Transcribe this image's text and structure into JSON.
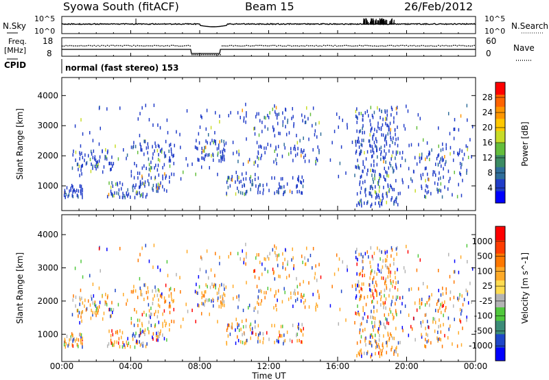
{
  "header": {
    "station": "Syowa South (fitACF)",
    "beam": "Beam 15",
    "date": "26/Feb/2012"
  },
  "noise_panel": {
    "left_label": "N.Sky",
    "right_label": "N.Search",
    "ytick_top": "10^5",
    "ytick_bottom": "10^0",
    "right_tick_top": "10^5",
    "right_tick_bottom": "10^0"
  },
  "freq_panel": {
    "left_label": "Freq.",
    "left_unit": "[MHz]",
    "left_ticks": [
      "18",
      "8"
    ],
    "right_label": "Nave",
    "right_ticks": [
      "60",
      "0"
    ],
    "cpid_label": "CPID",
    "mode_text": "normal (fast stereo) 153"
  },
  "chart_data": [
    {
      "type": "heatmap",
      "name": "power",
      "ylabel": "Slant Range [km]",
      "yticks": [
        1000,
        2000,
        3000,
        4000
      ],
      "ylim": [
        180,
        4600
      ],
      "xlim": [
        0,
        24
      ],
      "colorbar": {
        "label": "Power [dB]",
        "ticks": [
          "28",
          "24",
          "20",
          "16",
          "12",
          "8",
          "4"
        ],
        "colors": [
          "#0000ff",
          "#203cc8",
          "#2f6e9a",
          "#3c8c64",
          "#64be3c",
          "#c8dc28",
          "#ffc800",
          "#ff9600",
          "#ff6400",
          "#ff0000"
        ]
      }
    },
    {
      "type": "heatmap",
      "name": "velocity",
      "ylabel": "Slant Range [km]",
      "yticks": [
        1000,
        2000,
        3000,
        4000
      ],
      "ylim": [
        180,
        4600
      ],
      "xlim": [
        0,
        24
      ],
      "xticks": [
        "00:00",
        "04:00",
        "08:00",
        "12:00",
        "16:00",
        "20:00",
        "00:00"
      ],
      "xlabel": "Time UT",
      "colorbar": {
        "label": "Velocity [m s^-1]",
        "ticks": [
          "1000",
          "500",
          "100",
          "25",
          "-25",
          "-100",
          "-500",
          "-1000"
        ],
        "colors": [
          "#0000ff",
          "#1e46c8",
          "#3c8c78",
          "#50c83c",
          "#b4b4b4",
          "#ffdc50",
          "#ffaa28",
          "#ff7800",
          "#ff3c00",
          "#ff0000"
        ]
      }
    }
  ],
  "colors": {
    "axis": "#000000",
    "background": "#ffffff"
  }
}
